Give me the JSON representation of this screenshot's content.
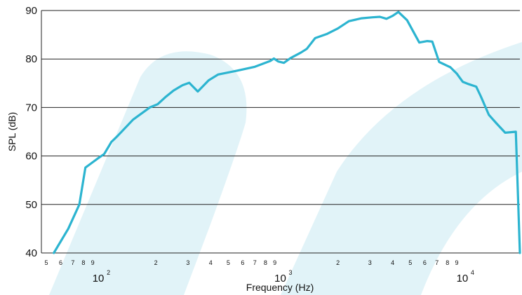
{
  "chart_data": {
    "type": "line",
    "xlabel": "Frequency (Hz)",
    "ylabel": "SPL (dB)",
    "xscale": "log",
    "xlim": [
      47,
      20000
    ],
    "ylim": [
      40,
      90
    ],
    "yticks": [
      40,
      50,
      60,
      70,
      80,
      90
    ],
    "grid": "horizontal",
    "decade_labels": [
      {
        "base": "10",
        "exp": "2",
        "value": 100
      },
      {
        "base": "10",
        "exp": "3",
        "value": 1000
      },
      {
        "base": "10",
        "exp": "4",
        "value": 10000
      }
    ],
    "minor_ticks": [
      {
        "value": 50,
        "label": "5"
      },
      {
        "value": 60,
        "label": "6"
      },
      {
        "value": 70,
        "label": "7"
      },
      {
        "value": 80,
        "label": "8"
      },
      {
        "value": 90,
        "label": "9"
      },
      {
        "value": 200,
        "label": "2"
      },
      {
        "value": 300,
        "label": "3"
      },
      {
        "value": 400,
        "label": "4"
      },
      {
        "value": 500,
        "label": "5"
      },
      {
        "value": 600,
        "label": "6"
      },
      {
        "value": 700,
        "label": "7"
      },
      {
        "value": 800,
        "label": "8"
      },
      {
        "value": 900,
        "label": "9"
      },
      {
        "value": 2000,
        "label": "2"
      },
      {
        "value": 3000,
        "label": "3"
      },
      {
        "value": 4000,
        "label": "4"
      },
      {
        "value": 5000,
        "label": "5"
      },
      {
        "value": 6000,
        "label": "6"
      },
      {
        "value": 7000,
        "label": "7"
      },
      {
        "value": 8000,
        "label": "8"
      },
      {
        "value": 9000,
        "label": "9"
      }
    ],
    "series": [
      {
        "color": "#2cb4d0",
        "x": [
          55,
          66,
          76,
          82,
          96,
          104,
          114,
          123,
          150,
          185,
          205,
          225,
          250,
          280,
          305,
          340,
          390,
          440,
          560,
          700,
          850,
          890,
          940,
          1010,
          1100,
          1250,
          1350,
          1500,
          1750,
          2000,
          2300,
          2700,
          3100,
          3400,
          3700,
          4000,
          4300,
          4800,
          5600,
          6200,
          6600,
          7200,
          8300,
          9000,
          9700,
          10500,
          11500,
          12200,
          13500,
          14800,
          16600,
          19000,
          20000
        ],
        "y": [
          40,
          45,
          50,
          57.6,
          59.5,
          60.4,
          62.9,
          64.1,
          67.5,
          70.0,
          70.7,
          72.1,
          73.5,
          74.6,
          75.1,
          73.3,
          75.6,
          76.8,
          77.6,
          78.4,
          79.6,
          80.1,
          79.5,
          79.2,
          80.2,
          81.3,
          82.1,
          84.3,
          85.2,
          86.3,
          87.8,
          88.4,
          88.6,
          88.7,
          88.3,
          88.9,
          89.7,
          88.0,
          83.4,
          83.7,
          83.6,
          79.4,
          78.3,
          77.0,
          75.3,
          74.8,
          74.3,
          72.3,
          68.5,
          66.8,
          64.8,
          65.0,
          40.0
        ]
      }
    ]
  }
}
